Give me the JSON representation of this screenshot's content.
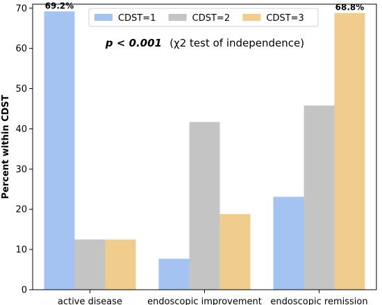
{
  "chart_data": {
    "type": "bar",
    "categories": [
      "active disease",
      "endoscopic improvement",
      "endoscopic remission"
    ],
    "series": [
      {
        "name": "CDST=1",
        "color": "#a5c3f2",
        "values": [
          69.2,
          7.7,
          23.1
        ]
      },
      {
        "name": "CDST=2",
        "color": "#c4c4c4",
        "values": [
          12.5,
          41.7,
          45.8
        ]
      },
      {
        "name": "CDST=3",
        "color": "#f0cd8c",
        "values": [
          12.5,
          18.8,
          68.8
        ]
      }
    ],
    "ylabel": "Percent within CDST",
    "xlabel": "",
    "ylim": [
      0,
      71
    ],
    "yticks": [
      0,
      10,
      20,
      30,
      40,
      50,
      60,
      70
    ],
    "grid": false,
    "legend": "top-center",
    "annotation": {
      "bold": "p < 0.001",
      "rest": "(χ2 test of independence)"
    },
    "data_labels": [
      {
        "series": 0,
        "category": 0,
        "text": "69.2%"
      },
      {
        "series": 2,
        "category": 2,
        "text": "68.8%"
      }
    ]
  }
}
